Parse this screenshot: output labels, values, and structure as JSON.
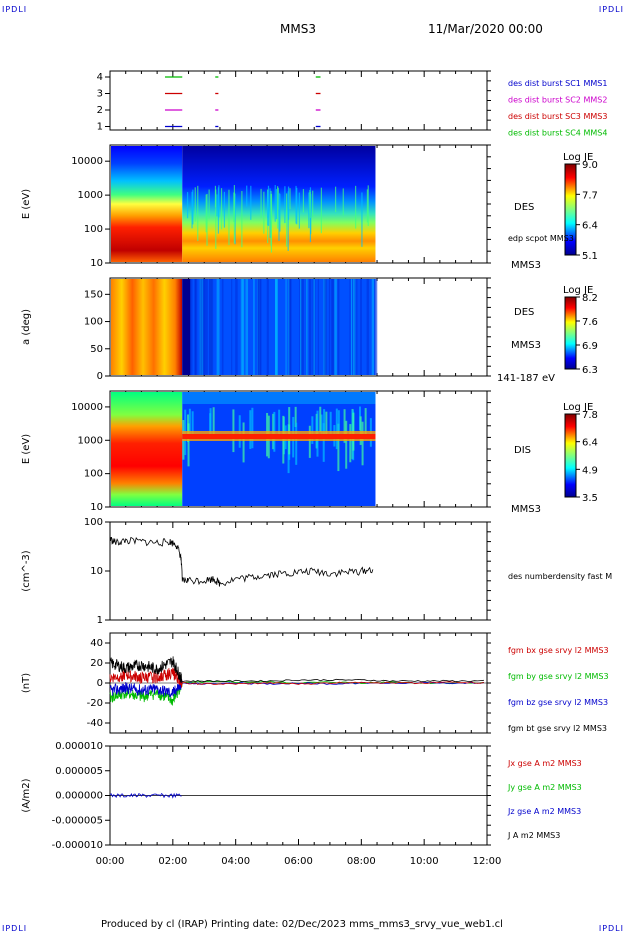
{
  "corners": {
    "tl": "IPDLI",
    "tr": "IPDLI",
    "bl": "IPDLI",
    "br": "IPDLI"
  },
  "header": {
    "title": "MMS3",
    "date": "11/Mar/2020 00:00"
  },
  "footer": {
    "text": "Produced by cl (IRAP)   Printing date: 02/Dec/2023   mms_mms3_srvy_vue_web1.cl"
  },
  "chart_data": [
    {
      "type": "scatter",
      "panel": "burst-availability",
      "yticks": [
        "4",
        "3",
        "2",
        "1"
      ],
      "legend": [
        {
          "name": "des dist burst SC1 MMS1",
          "color": "#0000cc",
          "level": 1
        },
        {
          "name": "des dist burst SC2 MMS2",
          "color": "#cc00cc",
          "level": 2
        },
        {
          "name": "des dist burst SC3 MMS3",
          "color": "#cc0000",
          "level": 3
        },
        {
          "name": "des dist burst SC4 MMS4",
          "color": "#00bb00",
          "level": 4
        }
      ],
      "intervals": [
        [
          1.75,
          2.3
        ],
        [
          3.35,
          3.45
        ],
        [
          6.55,
          6.7
        ]
      ]
    },
    {
      "type": "heatmap",
      "panel": "des-energy-spectrogram",
      "ylabel": "E (eV)",
      "yscale": "log",
      "ylim": [
        10,
        30000
      ],
      "yticks": [
        "10000",
        "1000",
        "100",
        "10"
      ],
      "colorbar": {
        "title": "Log JE",
        "ticks": [
          "9.0",
          "7.7",
          "6.4",
          "5.1"
        ]
      },
      "labels": [
        "DES",
        "edp scpot MMS3",
        "MMS3"
      ]
    },
    {
      "type": "heatmap",
      "panel": "des-pitch-angle",
      "ylabel": "a (deg)",
      "ylim": [
        0,
        180
      ],
      "yticks": [
        "150",
        "100",
        "50",
        "0"
      ],
      "colorbar": {
        "title": "Log JE",
        "ticks": [
          "8.2",
          "7.6",
          "6.9",
          "6.3"
        ]
      },
      "labels": [
        "DES",
        "MMS3",
        "141-187 eV"
      ]
    },
    {
      "type": "heatmap",
      "panel": "dis-energy-spectrogram",
      "ylabel": "E (eV)",
      "yscale": "log",
      "ylim": [
        10,
        30000
      ],
      "yticks": [
        "10000",
        "1000",
        "100",
        "10"
      ],
      "colorbar": {
        "title": "Log JE",
        "ticks": [
          "7.8",
          "6.4",
          "4.9",
          "3.5"
        ]
      },
      "labels": [
        "DIS",
        "MMS3"
      ]
    },
    {
      "type": "line",
      "panel": "number-density",
      "ylabel": "(cm^-3)",
      "yscale": "log",
      "ylim": [
        1,
        100
      ],
      "yticks": [
        "100",
        "10",
        "1"
      ],
      "series": [
        {
          "name": "des numberdensity fast M",
          "color": "#000000",
          "x": [
            0,
            0.2,
            0.5,
            1.0,
            1.5,
            1.9,
            2.1,
            2.25,
            2.3,
            2.5,
            3.0,
            3.3,
            3.5,
            4.0,
            4.5,
            5.0,
            5.5,
            6.0,
            6.5,
            7.0,
            7.5,
            8.0,
            8.4
          ],
          "y": [
            45,
            38,
            42,
            40,
            38,
            40,
            35,
            20,
            6.5,
            6.5,
            6.5,
            7,
            5.5,
            7,
            7.5,
            8.5,
            9,
            9.5,
            10,
            9,
            9.5,
            10,
            11
          ]
        }
      ]
    },
    {
      "type": "line",
      "panel": "magnetic-field",
      "ylabel": "(nT)",
      "ylim": [
        -50,
        50
      ],
      "yticks": [
        "40",
        "20",
        "0",
        "-20",
        "-40"
      ],
      "series": [
        {
          "name": "fgm bx gse srvy l2 MMS3",
          "color": "#cc0000",
          "x": [
            0,
            0.5,
            1,
            1.5,
            2,
            2.3,
            3,
            4,
            5,
            6,
            7,
            8,
            9,
            10,
            11,
            12
          ],
          "y": [
            5,
            8,
            5,
            6,
            10,
            0,
            -1,
            -1,
            0,
            -1,
            0,
            1,
            0,
            0,
            1,
            0
          ]
        },
        {
          "name": "fgm by gse srvy l2 MMS3",
          "color": "#00bb00",
          "x": [
            0,
            0.5,
            1,
            1.5,
            2,
            2.3,
            3,
            4,
            5,
            6,
            7,
            8,
            9,
            10,
            11,
            12
          ],
          "y": [
            -15,
            -10,
            -14,
            -10,
            -18,
            0,
            1,
            1,
            1,
            0,
            1,
            0,
            1,
            0,
            0,
            0
          ]
        },
        {
          "name": "fgm bz gse srvy l2 MMS3",
          "color": "#0000cc",
          "x": [
            0,
            0.5,
            1,
            1.5,
            2,
            2.3,
            3,
            4,
            5,
            6,
            7,
            8,
            9,
            10,
            11,
            12
          ],
          "y": [
            -8,
            -5,
            -7,
            -6,
            -10,
            0,
            -1,
            0,
            -1,
            0,
            -1,
            0,
            0,
            0,
            0,
            0
          ]
        },
        {
          "name": "fgm bt gse srvy l2 MMS3",
          "color": "#000000",
          "x": [
            0,
            0.5,
            1,
            1.5,
            2,
            2.3,
            3,
            4,
            5,
            6,
            7,
            8,
            9,
            10,
            11,
            12
          ],
          "y": [
            20,
            15,
            18,
            14,
            22,
            2,
            2,
            2,
            2,
            3,
            3,
            3,
            2,
            2,
            2,
            2
          ]
        }
      ]
    },
    {
      "type": "line",
      "panel": "current-density",
      "ylabel": "(A/m2)",
      "ylim": [
        -1e-05,
        1e-05
      ],
      "yticks": [
        "0.000010",
        "0.000005",
        "0.000000",
        "-0.000005",
        "-0.000010"
      ],
      "series": [
        {
          "name": "Jx gse A m2 MMS3",
          "color": "#cc0000",
          "x": [
            0,
            2.3,
            12
          ],
          "y": [
            0,
            0,
            0
          ]
        },
        {
          "name": "Jy gse A m2 MMS3",
          "color": "#00bb00",
          "x": [
            0,
            2.3,
            12
          ],
          "y": [
            0,
            0,
            0
          ]
        },
        {
          "name": "Jz gse A m2 MMS3",
          "color": "#0000cc",
          "x": [
            0,
            2.3,
            12
          ],
          "y": [
            0,
            0,
            0
          ]
        },
        {
          "name": "J A m2 MMS3",
          "color": "#000000",
          "x": [
            0,
            2.3,
            12
          ],
          "y": [
            0,
            0,
            0
          ]
        }
      ]
    }
  ],
  "xaxis": {
    "ticks": [
      "00:00",
      "02:00",
      "04:00",
      "06:00",
      "08:00",
      "10:00",
      "12:00"
    ],
    "xlim": [
      0,
      12
    ]
  }
}
